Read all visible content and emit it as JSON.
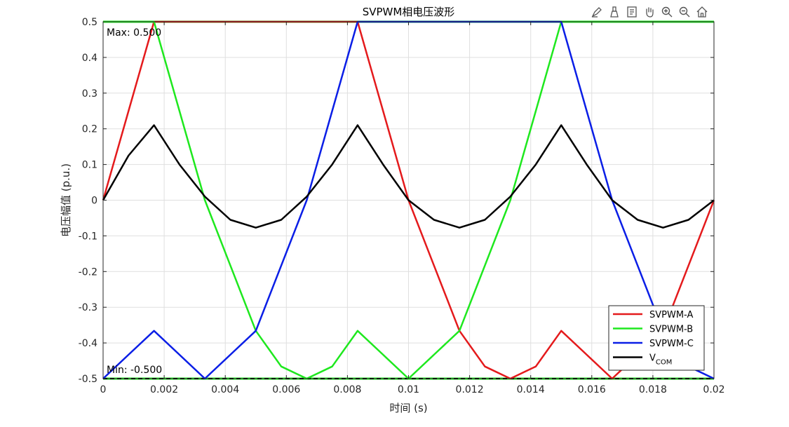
{
  "toolbar": {
    "icons": [
      "brush-icon",
      "paint-icon",
      "datatip-icon",
      "pan-hand-icon",
      "zoom-in-icon",
      "zoom-out-icon",
      "home-icon"
    ]
  },
  "chart_data": {
    "type": "line",
    "title": "SVPWM相电压波形",
    "xlabel": "时间 (s)",
    "ylabel": "电压幅值 (p.u.)",
    "xlim": [
      0,
      0.02
    ],
    "ylim": [
      -0.5,
      0.5
    ],
    "x_ticks": [
      "0",
      "0.002",
      "0.004",
      "0.006",
      "0.008",
      "0.01",
      "0.012",
      "0.014",
      "0.016",
      "0.018",
      "0.02"
    ],
    "y_ticks": [
      "0.5",
      "0.4",
      "0.3",
      "0.2",
      "0.1",
      "0",
      "-0.1",
      "-0.2",
      "-0.3",
      "-0.4",
      "-0.5"
    ],
    "grid": true,
    "legend_placement": "bottom-right",
    "max_annotation": "Max: 0.500",
    "min_annotation": "Min: -0.500",
    "series": [
      {
        "name": "SVPWM-A",
        "color": "#e41a1c",
        "x": [
          0,
          0.000833,
          0.001667,
          0.0025,
          0.003333,
          0.004167,
          0.005,
          0.005833,
          0.006667,
          0.0075,
          0.008333,
          0.009167,
          0.01,
          0.010833,
          0.011667,
          0.0125,
          0.013333,
          0.014167,
          0.015,
          0.015833,
          0.016667,
          0.0175,
          0.018333,
          0.019167,
          0.02
        ],
        "y": [
          0,
          0.25,
          0.5,
          0.5,
          0.5,
          0.5,
          0.5,
          0.5,
          0.5,
          0.5,
          0.5,
          0.25,
          0,
          -0.183,
          -0.366,
          -0.466,
          -0.5,
          -0.466,
          -0.366,
          -0.433,
          -0.5,
          -0.433,
          -0.366,
          -0.183,
          0
        ]
      },
      {
        "name": "SVPWM-B",
        "color": "#1ee81e",
        "x": [
          0,
          0.000833,
          0.001667,
          0.0025,
          0.003333,
          0.004167,
          0.005,
          0.005833,
          0.006667,
          0.0075,
          0.008333,
          0.009167,
          0.01,
          0.010833,
          0.011667,
          0.0125,
          0.013333,
          0.014167,
          0.015,
          0.015833,
          0.016667,
          0.0175,
          0.018333,
          0.019167,
          0.02
        ],
        "y": [
          0.5,
          0.5,
          0.5,
          0.25,
          0,
          -0.183,
          -0.366,
          -0.466,
          -0.5,
          -0.466,
          -0.366,
          -0.433,
          -0.5,
          -0.433,
          -0.366,
          -0.183,
          0,
          0.25,
          0.5,
          0.5,
          0.5,
          0.5,
          0.5,
          0.5,
          0.5
        ]
      },
      {
        "name": "SVPWM-C",
        "color": "#0a1ee6",
        "x": [
          0,
          0.000833,
          0.001667,
          0.0025,
          0.003333,
          0.004167,
          0.005,
          0.005833,
          0.006667,
          0.0075,
          0.008333,
          0.009167,
          0.01,
          0.010833,
          0.011667,
          0.0125,
          0.013333,
          0.014167,
          0.015,
          0.015833,
          0.016667,
          0.0175,
          0.018333,
          0.019167,
          0.02
        ],
        "y": [
          -0.5,
          -0.433,
          -0.366,
          -0.433,
          -0.5,
          -0.433,
          -0.366,
          -0.183,
          0,
          0.25,
          0.5,
          0.5,
          0.5,
          0.5,
          0.5,
          0.5,
          0.5,
          0.5,
          0.5,
          0.25,
          0,
          -0.183,
          -0.366,
          -0.466,
          -0.5
        ]
      },
      {
        "name": "V",
        "name_sub": "COM",
        "color": "#000000",
        "x": [
          0,
          0.000833,
          0.001667,
          0.0025,
          0.003333,
          0.004167,
          0.005,
          0.005833,
          0.006667,
          0.0075,
          0.008333,
          0.009167,
          0.01,
          0.010833,
          0.011667,
          0.0125,
          0.013333,
          0.014167,
          0.015,
          0.015833,
          0.016667,
          0.0175,
          0.018333,
          0.019167,
          0.02
        ],
        "y": [
          0,
          0.125,
          0.21,
          0.1,
          0.01,
          -0.055,
          -0.077,
          -0.055,
          0.01,
          0.1,
          0.21,
          0.1,
          0,
          -0.055,
          -0.077,
          -0.055,
          0.01,
          0.1,
          0.21,
          0.1,
          0,
          -0.055,
          -0.077,
          -0.055,
          0
        ]
      }
    ]
  }
}
